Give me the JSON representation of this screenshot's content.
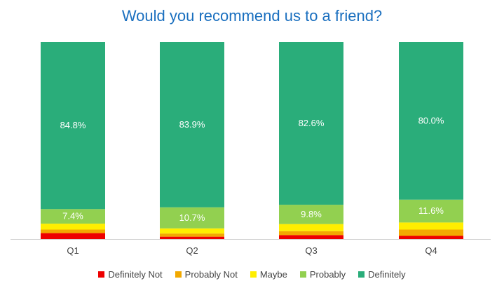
{
  "chart_data": {
    "type": "bar",
    "stacked": true,
    "percent": true,
    "title": "Would you recommend us to a friend?",
    "categories": [
      "Q1",
      "Q2",
      "Q3",
      "Q4"
    ],
    "series": [
      {
        "name": "Definitely Not",
        "color": "#ee0000",
        "values": [
          3.0,
          1.2,
          2.0,
          1.6
        ]
      },
      {
        "name": "Probably Not",
        "color": "#f2a900",
        "values": [
          1.8,
          1.6,
          2.0,
          3.2
        ]
      },
      {
        "name": "Maybe",
        "color": "#ffee00",
        "values": [
          3.0,
          2.6,
          3.6,
          3.6
        ]
      },
      {
        "name": "Probably",
        "color": "#92d050",
        "values": [
          7.4,
          10.7,
          9.8,
          11.6
        ],
        "labels": [
          "7.4%",
          "10.7%",
          "9.8%",
          "11.6%"
        ]
      },
      {
        "name": "Definitely",
        "color": "#2aad7a",
        "values": [
          84.8,
          83.9,
          82.6,
          80.0
        ],
        "labels": [
          "84.8%",
          "83.9%",
          "82.6%",
          "80.0%"
        ]
      }
    ],
    "ylim": [
      0,
      100
    ],
    "grid": false,
    "legend_position": "bottom"
  }
}
